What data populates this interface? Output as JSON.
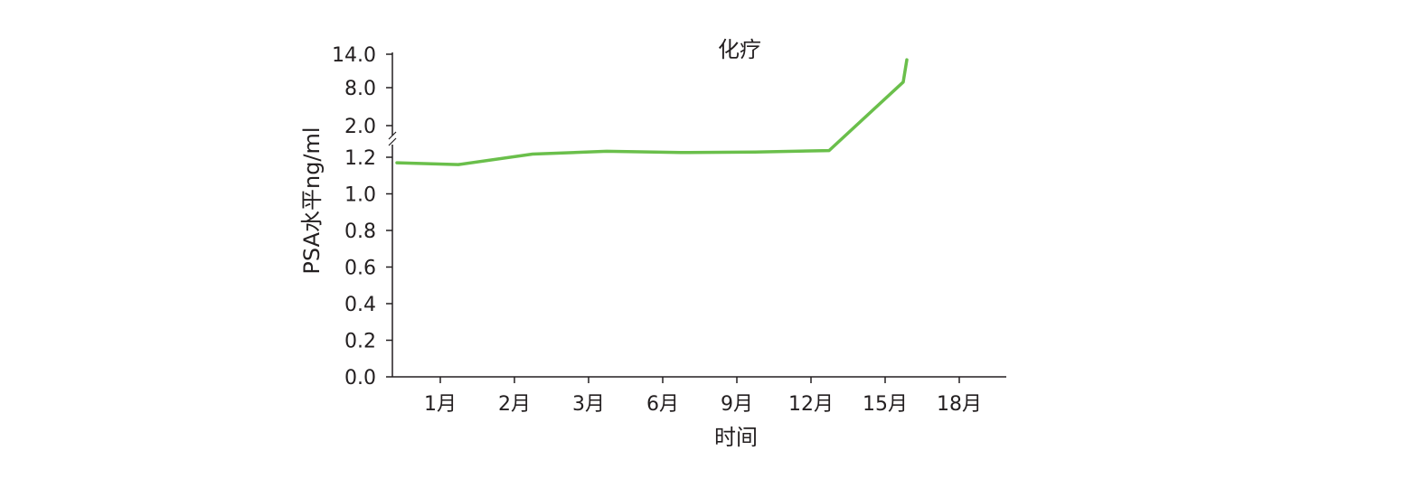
{
  "chart_data": {
    "type": "line",
    "title": "",
    "xlabel": "时间",
    "ylabel": "PSA水平ng/ml",
    "annotation": "化疗",
    "x_categories": [
      "1月",
      "2月",
      "3月",
      "6月",
      "9月",
      "12月",
      "15月",
      "18月"
    ],
    "y_scale": "broken",
    "y_ticks_lower": [
      "0.0",
      "0.2",
      "0.4",
      "0.6",
      "0.8",
      "1.0",
      "1.2"
    ],
    "y_ticks_upper": [
      "2.0",
      "8.0",
      "14.0"
    ],
    "ylim_lower": [
      0,
      1.3
    ],
    "ylim_upper": [
      2,
      14
    ],
    "series": [
      {
        "color": "#6abf4b",
        "points": [
          {
            "x": "start",
            "y": 1.17
          },
          {
            "x": "1月",
            "y": 1.16
          },
          {
            "x": "2月",
            "y": 1.28
          },
          {
            "x": "3月",
            "y": 1.35
          },
          {
            "x": "6月",
            "y": 1.32
          },
          {
            "x": "9月",
            "y": 1.33
          },
          {
            "x": "12月",
            "y": 1.37
          },
          {
            "x": "15月",
            "y": 9.0
          },
          {
            "x": "15月+",
            "y": 13.0
          }
        ]
      }
    ],
    "grid": false,
    "legend": "none"
  }
}
